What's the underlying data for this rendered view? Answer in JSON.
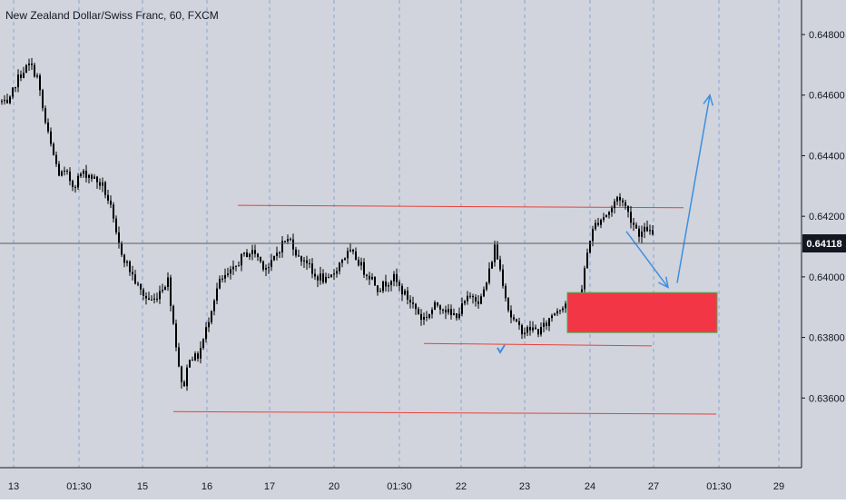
{
  "title": "New Zealand Dollar/Swiss Franc, 60, FXCM",
  "colors": {
    "background": "#d1d4dc",
    "grid": "#8ba4d6",
    "candle": "#000000",
    "level_line": "#e8423b",
    "zone_fill": "#f23645",
    "zone_border": "#4caf50",
    "arrow": "#3d8fe0",
    "price_line": "#5a5a5a",
    "price_badge": "#131722",
    "axis_text": "#131722"
  },
  "x_axis_labels": [
    "13",
    "01:30",
    "15",
    "16",
    "17",
    "20",
    "01:30",
    "22",
    "23",
    "24",
    "27",
    "01:30",
    "29"
  ],
  "y_axis_labels": [
    "0.64800",
    "0.64600",
    "0.64400",
    "0.64200",
    "0.64000",
    "0.63800",
    "0.63600"
  ],
  "current_price": "0.64118",
  "chart_data": {
    "type": "candlestick",
    "title": "New Zealand Dollar/Swiss Franc, 60, FXCM",
    "ylim": [
      0.6337,
      0.6489
    ],
    "close_series": [
      [
        0,
        0.6458
      ],
      [
        8,
        0.6456
      ],
      [
        16,
        0.6464
      ],
      [
        24,
        0.6468
      ],
      [
        32,
        0.647
      ],
      [
        40,
        0.6466
      ],
      [
        48,
        0.6452
      ],
      [
        56,
        0.6442
      ],
      [
        64,
        0.6434
      ],
      [
        72,
        0.6434
      ],
      [
        80,
        0.643
      ],
      [
        88,
        0.6434
      ],
      [
        96,
        0.6434
      ],
      [
        104,
        0.6432
      ],
      [
        112,
        0.643
      ],
      [
        120,
        0.6424
      ],
      [
        128,
        0.6412
      ],
      [
        136,
        0.6406
      ],
      [
        144,
        0.6401
      ],
      [
        152,
        0.6396
      ],
      [
        160,
        0.6393
      ],
      [
        168,
        0.6392
      ],
      [
        176,
        0.6396
      ],
      [
        184,
        0.6399
      ],
      [
        192,
        0.638
      ],
      [
        200,
        0.6362
      ],
      [
        208,
        0.6374
      ],
      [
        216,
        0.6373
      ],
      [
        224,
        0.638
      ],
      [
        232,
        0.639
      ],
      [
        240,
        0.6398
      ],
      [
        248,
        0.64
      ],
      [
        256,
        0.6402
      ],
      [
        264,
        0.6406
      ],
      [
        272,
        0.6408
      ],
      [
        280,
        0.6408
      ],
      [
        288,
        0.6404
      ],
      [
        296,
        0.6403
      ],
      [
        304,
        0.6408
      ],
      [
        312,
        0.6412
      ],
      [
        320,
        0.6412
      ],
      [
        328,
        0.6406
      ],
      [
        336,
        0.6406
      ],
      [
        344,
        0.64
      ],
      [
        352,
        0.64
      ],
      [
        360,
        0.6398
      ],
      [
        368,
        0.6402
      ],
      [
        376,
        0.6406
      ],
      [
        384,
        0.6408
      ],
      [
        392,
        0.6406
      ],
      [
        400,
        0.6402
      ],
      [
        408,
        0.64
      ],
      [
        416,
        0.6396
      ],
      [
        424,
        0.6398
      ],
      [
        432,
        0.64
      ],
      [
        440,
        0.6396
      ],
      [
        448,
        0.6393
      ],
      [
        456,
        0.639
      ],
      [
        464,
        0.6386
      ],
      [
        472,
        0.6388
      ],
      [
        480,
        0.6391
      ],
      [
        488,
        0.639
      ],
      [
        496,
        0.6387
      ],
      [
        504,
        0.6388
      ],
      [
        512,
        0.6392
      ],
      [
        520,
        0.6394
      ],
      [
        528,
        0.6392
      ],
      [
        536,
        0.6399
      ],
      [
        544,
        0.641
      ],
      [
        552,
        0.64
      ],
      [
        560,
        0.6388
      ],
      [
        568,
        0.6384
      ],
      [
        576,
        0.6382
      ],
      [
        584,
        0.6383
      ],
      [
        592,
        0.6382
      ],
      [
        600,
        0.6384
      ],
      [
        608,
        0.6388
      ],
      [
        616,
        0.639
      ],
      [
        624,
        0.6392
      ],
      [
        632,
        0.639
      ],
      [
        640,
        0.6396
      ],
      [
        648,
        0.6412
      ],
      [
        656,
        0.6418
      ],
      [
        664,
        0.642
      ],
      [
        672,
        0.6422
      ],
      [
        680,
        0.6427
      ],
      [
        688,
        0.6423
      ],
      [
        696,
        0.6418
      ],
      [
        704,
        0.6414
      ],
      [
        712,
        0.6416
      ],
      [
        718,
        0.6413
      ]
    ],
    "support_resistance_lines": [
      {
        "x": [
          262,
          753
        ],
        "y": [
          0.64236,
          0.64228
        ]
      },
      {
        "x": [
          467,
          718
        ],
        "y": [
          0.6378,
          0.63772
        ]
      },
      {
        "x": [
          191,
          789
        ],
        "y": [
          0.63555,
          0.63547
        ]
      }
    ],
    "demand_zone": {
      "x": [
        625,
        790
      ],
      "y": [
        0.63948,
        0.63816
      ]
    },
    "projection_arrows": [
      {
        "from": [
          690,
          0.6415
        ],
        "to": [
          736,
          0.63965
        ]
      },
      {
        "from": [
          746,
          0.6398
        ],
        "to": [
          782,
          0.646
        ]
      }
    ],
    "marker": {
      "x": 551,
      "y": 0.6376
    }
  }
}
